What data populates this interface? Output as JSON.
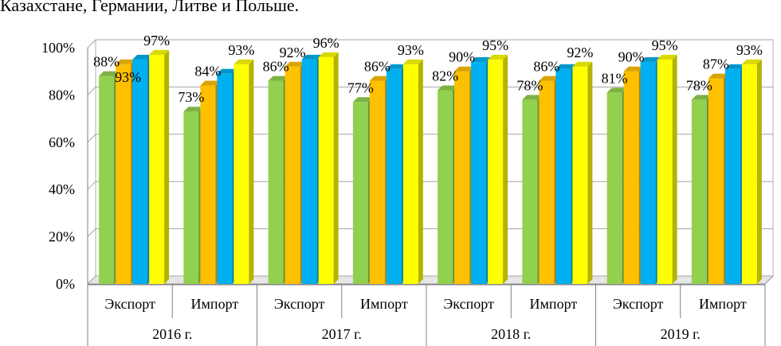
{
  "page": {
    "caption_fragment": "Казахстане, Германии, Литве и Польше."
  },
  "chart_data": {
    "type": "bar",
    "style": "3d-clustered",
    "ylim": [
      0,
      100
    ],
    "yticks": [
      "0%",
      "20%",
      "40%",
      "60%",
      "80%",
      "100%"
    ],
    "grid": true,
    "legend": "none",
    "colors": [
      "#92d050",
      "#ffc000",
      "#00b0f0",
      "#ffff00"
    ],
    "years": [
      "2016 г.",
      "2017 г.",
      "2018 г.",
      "2019 г."
    ],
    "categories": [
      {
        "year": "2016 г.",
        "label": "Экспорт",
        "values": [
          88,
          93,
          95,
          97
        ],
        "labels": [
          "88%",
          "93%",
          "",
          "97%"
        ]
      },
      {
        "year": "2016 г.",
        "label": "Импорт",
        "values": [
          73,
          84,
          89,
          93
        ],
        "labels": [
          "73%",
          "84%",
          "",
          "93%"
        ]
      },
      {
        "year": "2017 г.",
        "label": "Экспорт",
        "values": [
          86,
          92,
          95,
          96
        ],
        "labels": [
          "86%",
          "92%",
          "",
          "96%"
        ]
      },
      {
        "year": "2017 г.",
        "label": "Импорт",
        "values": [
          77,
          86,
          91,
          93
        ],
        "labels": [
          "77%",
          "86%",
          "",
          "93%"
        ]
      },
      {
        "year": "2018 г.",
        "label": "Экспорт",
        "values": [
          82,
          90,
          94,
          95
        ],
        "labels": [
          "82%",
          "90%",
          "",
          "95%"
        ]
      },
      {
        "year": "2018 г.",
        "label": "Импорт",
        "values": [
          78,
          86,
          91,
          92
        ],
        "labels": [
          "78%",
          "86%",
          "",
          "92%"
        ]
      },
      {
        "year": "2019 г.",
        "label": "Экспорт",
        "values": [
          81,
          90,
          94,
          95
        ],
        "labels": [
          "81%",
          "90%",
          "",
          "95%"
        ]
      },
      {
        "year": "2019 г.",
        "label": "Импорт",
        "values": [
          78,
          87,
          91,
          93
        ],
        "labels": [
          "78%",
          "87%",
          "",
          "93%"
        ]
      }
    ]
  }
}
